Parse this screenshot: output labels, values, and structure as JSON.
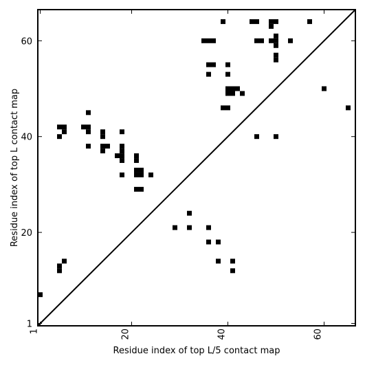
{
  "chart_data": {
    "type": "heatmap",
    "title": "",
    "xlabel": "Residue index of top L/5 contact map",
    "ylabel": "Residue index of top L contact map",
    "xlim": [
      0.5,
      66.5
    ],
    "ylim": [
      0.5,
      66.5
    ],
    "xticks": [
      1,
      20,
      40,
      60
    ],
    "yticks": [
      1,
      20,
      40,
      60
    ],
    "x_tick_rotation": -90,
    "diagonal": true,
    "cell_color": "#000000",
    "background": "#ffffff",
    "cells_upper": [
      [
        1,
        7
      ],
      [
        5,
        12
      ],
      [
        5,
        13
      ],
      [
        6,
        14
      ],
      [
        5,
        40
      ],
      [
        5,
        42
      ],
      [
        6,
        41
      ],
      [
        6,
        42
      ],
      [
        10,
        42
      ],
      [
        11,
        42
      ],
      [
        11,
        41
      ],
      [
        11,
        38
      ],
      [
        11,
        45
      ],
      [
        14,
        40
      ],
      [
        14,
        41
      ],
      [
        14,
        38
      ],
      [
        14,
        37
      ],
      [
        15,
        38
      ],
      [
        17,
        36
      ],
      [
        18,
        41
      ],
      [
        18,
        38
      ],
      [
        18,
        37
      ],
      [
        18,
        36
      ],
      [
        18,
        35
      ],
      [
        18,
        32
      ],
      [
        21,
        36
      ],
      [
        21,
        35
      ],
      [
        21,
        33
      ],
      [
        21,
        32
      ],
      [
        22,
        33
      ],
      [
        22,
        32
      ],
      [
        21,
        29
      ],
      [
        22,
        29
      ],
      [
        24,
        32
      ]
    ],
    "cells_lower": [
      [
        29,
        21
      ],
      [
        32,
        24
      ],
      [
        32,
        21
      ],
      [
        36,
        21
      ],
      [
        36,
        18
      ],
      [
        38,
        18
      ],
      [
        38,
        14
      ],
      [
        41,
        14
      ],
      [
        41,
        12
      ],
      [
        35,
        60
      ],
      [
        36,
        60
      ],
      [
        37,
        60
      ],
      [
        36,
        55
      ],
      [
        37,
        55
      ],
      [
        36,
        53
      ],
      [
        39,
        64
      ],
      [
        39,
        46
      ],
      [
        40,
        46
      ],
      [
        40,
        55
      ],
      [
        40,
        53
      ],
      [
        40,
        50
      ],
      [
        40,
        49
      ],
      [
        41,
        50
      ],
      [
        41,
        49
      ],
      [
        42,
        50
      ],
      [
        43,
        49
      ],
      [
        45,
        64
      ],
      [
        46,
        64
      ],
      [
        46,
        60
      ],
      [
        47,
        60
      ],
      [
        46,
        40
      ],
      [
        49,
        64
      ],
      [
        49,
        63
      ],
      [
        50,
        64
      ],
      [
        49,
        60
      ],
      [
        50,
        61
      ],
      [
        50,
        60
      ],
      [
        50,
        59
      ],
      [
        50,
        57
      ],
      [
        50,
        56
      ],
      [
        50,
        40
      ],
      [
        53,
        60
      ],
      [
        57,
        64
      ],
      [
        60,
        50
      ],
      [
        65,
        46
      ]
    ]
  }
}
